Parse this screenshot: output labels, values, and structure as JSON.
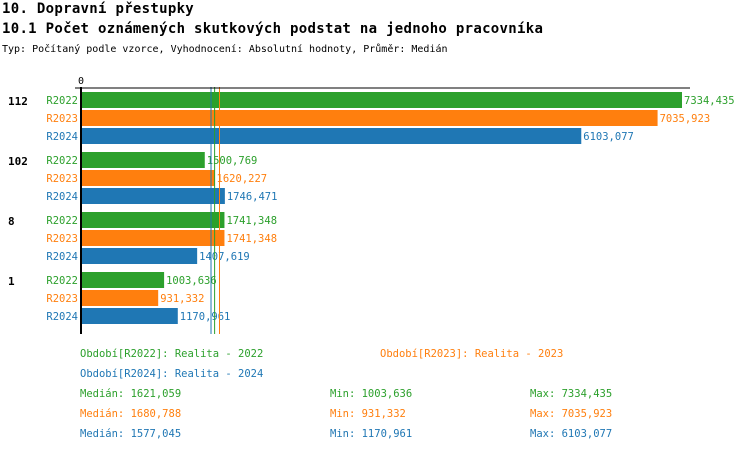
{
  "title": "10. Dopravní přestupky",
  "subtitle": "10.1 Počet oznámených skutkových podstat na jednoho pracovníka",
  "description": "Typ: Počítaný podle vzorce, Vyhodnocení: Absolutní hodnoty, Průměr: Medián",
  "chart_data": {
    "type": "bar",
    "orientation": "horizontal",
    "axis_zero_label": "0",
    "categories": [
      "112",
      "102",
      "8",
      "1"
    ],
    "series": [
      {
        "name": "R2022",
        "color": "#2ca02c",
        "values": [
          7334.435,
          1500.769,
          1741.348,
          1003.636
        ],
        "labels": [
          "7334,435",
          "1500,769",
          "1741,348",
          "1003,636"
        ]
      },
      {
        "name": "R2023",
        "color": "#ff7f0e",
        "values": [
          7035.923,
          1620.227,
          1741.348,
          931.332
        ],
        "labels": [
          "7035,923",
          "1620,227",
          "1741,348",
          "931,332"
        ]
      },
      {
        "name": "R2024",
        "color": "#1f77b4",
        "values": [
          6103.077,
          1746.471,
          1407.619,
          1170.961
        ],
        "labels": [
          "6103,077",
          "1746,471",
          "1407,619",
          "1170,961"
        ]
      }
    ],
    "medians": [
      1621.059,
      1680.788,
      1577.045
    ],
    "legend": [
      {
        "text": "Období[R2022]: Realita - 2022",
        "color": "#2ca02c"
      },
      {
        "text": "Období[R2023]: Realita - 2023",
        "color": "#ff7f0e"
      },
      {
        "text": "Období[R2024]: Realita - 2024",
        "color": "#1f77b4"
      }
    ],
    "stats": [
      {
        "median": "Medián: 1621,059",
        "min": "Min: 1003,636",
        "max": "Max: 7334,435",
        "color": "#2ca02c"
      },
      {
        "median": "Medián: 1680,788",
        "min": "Min: 931,332",
        "max": "Max: 7035,923",
        "color": "#ff7f0e"
      },
      {
        "median": "Medián: 1577,045",
        "min": "Min: 1170,961",
        "max": "Max: 6103,077",
        "color": "#1f77b4"
      }
    ]
  }
}
